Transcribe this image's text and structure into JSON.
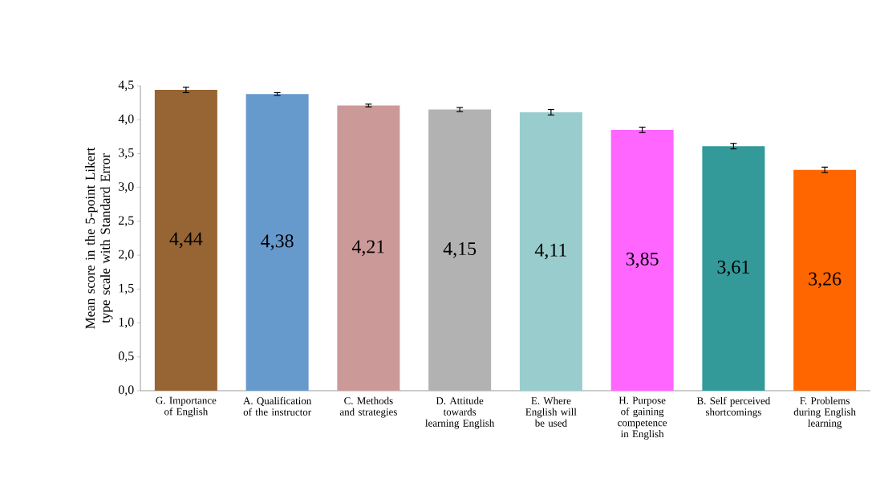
{
  "chart_data": {
    "type": "bar",
    "ylabel": "Mean score in the 5-point Likert type scale with Standard Error",
    "categories": [
      "G. Importance of English",
      "A. Qualification of the instructor",
      "C. Methods and strategies",
      "D. Attitude towards learning English",
      "E. Where English will be used",
      "H. Purpose of gaining competence in English",
      "B. Self perceived shortcomings",
      "F. Problems during English learning"
    ],
    "values": [
      4.44,
      4.38,
      4.21,
      4.15,
      4.11,
      3.85,
      3.61,
      3.26
    ],
    "value_labels": [
      "4,44",
      "4,38",
      "4,21",
      "4,15",
      "4,11",
      "3,85",
      "3,61",
      "3,26"
    ],
    "errors": [
      0.04,
      0.02,
      0.02,
      0.03,
      0.04,
      0.04,
      0.04,
      0.04
    ],
    "colors": [
      "#976433",
      "#6699cc",
      "#cc9999",
      "#b2b2b2",
      "#99cccc",
      "#ff66ff",
      "#339999",
      "#ff6600"
    ],
    "ylim": [
      0,
      4.5
    ],
    "yticks": [
      {
        "value": 0,
        "label": "0,0"
      },
      {
        "value": 0.5,
        "label": "0,5"
      },
      {
        "value": 1,
        "label": "1,0"
      },
      {
        "value": 1.5,
        "label": "1,5"
      },
      {
        "value": 2,
        "label": "2,0"
      },
      {
        "value": 2.5,
        "label": "2,5"
      },
      {
        "value": 3,
        "label": "3,0"
      },
      {
        "value": 3.5,
        "label": "3,5"
      },
      {
        "value": 4,
        "label": "4,0"
      },
      {
        "value": 4.5,
        "label": "4,5"
      }
    ],
    "grid": false
  }
}
